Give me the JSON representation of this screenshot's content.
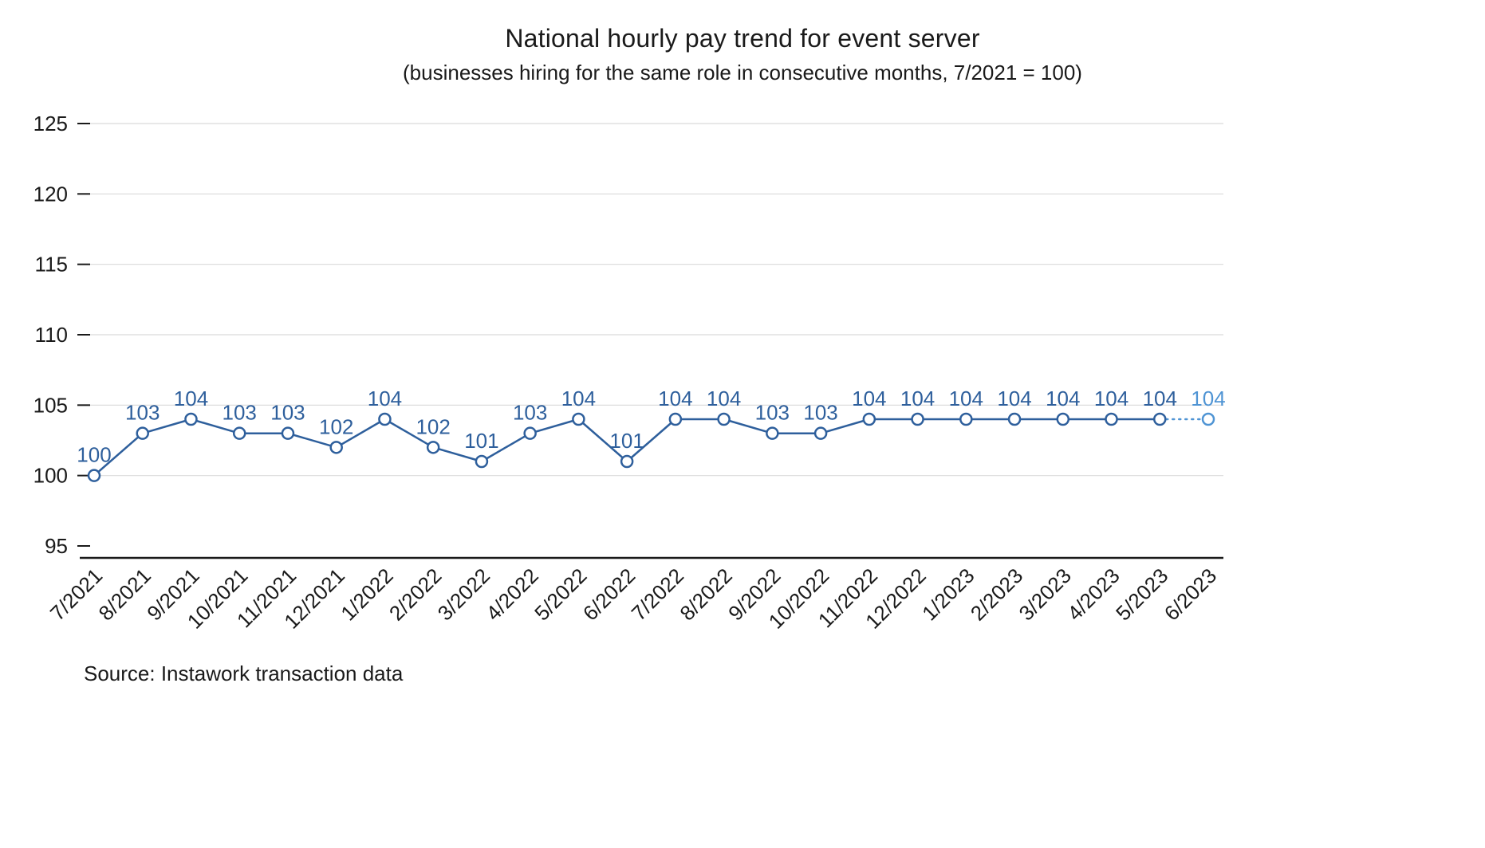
{
  "chart_data": {
    "type": "line",
    "title": "National hourly pay trend for event server",
    "subtitle": "(businesses hiring for the same role in consecutive months, 7/2021 = 100)",
    "source": "Source: Instawork transaction data",
    "categories": [
      "7/2021",
      "8/2021",
      "9/2021",
      "10/2021",
      "11/2021",
      "12/2021",
      "1/2022",
      "2/2022",
      "3/2022",
      "4/2022",
      "5/2022",
      "6/2022",
      "7/2022",
      "8/2022",
      "9/2022",
      "10/2022",
      "11/2022",
      "12/2022",
      "1/2023",
      "2/2023",
      "3/2023",
      "4/2023",
      "5/2023",
      "6/2023"
    ],
    "values": [
      100,
      103,
      104,
      103,
      103,
      102,
      104,
      102,
      101,
      103,
      104,
      101,
      104,
      104,
      103,
      103,
      104,
      104,
      104,
      104,
      104,
      104,
      104,
      104
    ],
    "yticks": [
      95,
      100,
      105,
      110,
      115,
      120,
      125
    ],
    "ylim": [
      94,
      127
    ],
    "grid": true,
    "legend": false,
    "point_labels": true,
    "marker": "open-circle",
    "projection": {
      "segment_from": "5/2023",
      "segment_to": "6/2023",
      "style": "dotted"
    },
    "colors": {
      "line": "#2e5f9c",
      "projection": "#4f94d4",
      "marker_fill": "#ffffff",
      "gridline": "#d9d9d9",
      "axis": "#1a1a1a",
      "text": "#1a1a1a"
    }
  }
}
